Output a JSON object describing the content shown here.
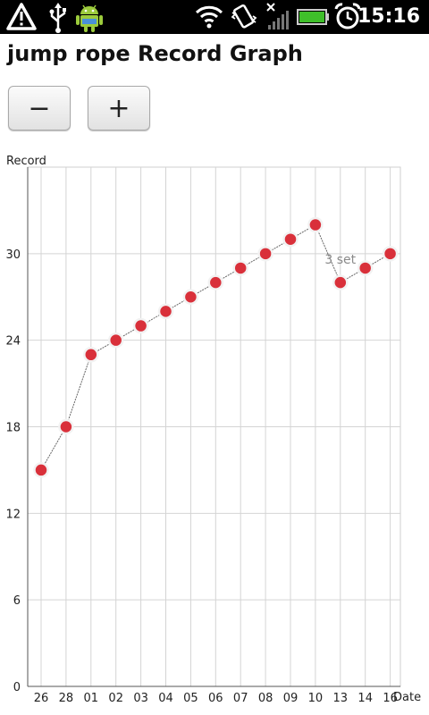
{
  "status_bar": {
    "time": "15:16",
    "icons": [
      "warning-icon",
      "usb-icon",
      "android-icon",
      "wifi-icon",
      "vibrate-icon",
      "no-signal-icon",
      "battery-icon",
      "alarm-icon"
    ],
    "battery_color": "#3fbf2a"
  },
  "app": {
    "title": "jump rope Record Graph"
  },
  "controls": {
    "minus_label": "−",
    "plus_label": "+"
  },
  "chart_data": {
    "type": "line",
    "title": "",
    "ylabel": "Record",
    "xlabel": "Date",
    "categories": [
      "26",
      "28",
      "01",
      "02",
      "03",
      "04",
      "05",
      "06",
      "07",
      "08",
      "09",
      "10",
      "13",
      "14",
      "16"
    ],
    "series": [
      {
        "values": [
          15,
          18,
          23,
          24,
          25,
          26,
          27,
          28,
          29,
          30,
          31,
          32,
          28,
          29,
          30
        ]
      }
    ],
    "yticks": [
      0,
      6,
      12,
      18,
      24,
      30
    ],
    "ylim": [
      0,
      36
    ],
    "grid": true,
    "annotations": [
      {
        "text": "3 set",
        "category": "13"
      }
    ],
    "point_color": "#d9303a",
    "line_color": "#666666"
  }
}
